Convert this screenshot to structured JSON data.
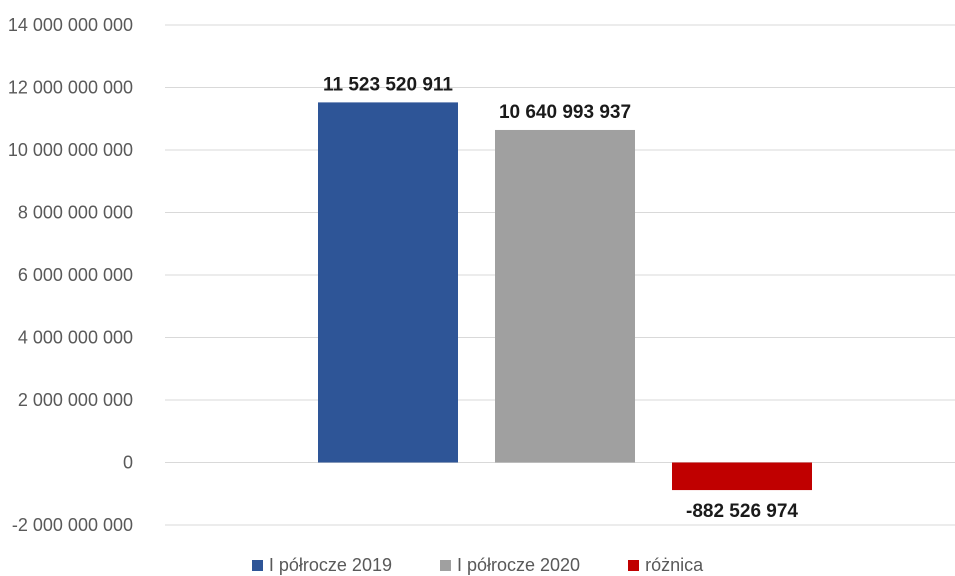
{
  "chart_data": {
    "type": "bar",
    "categories": [
      "I półrocze 2019",
      "I półrocze 2020",
      "różnica"
    ],
    "values": [
      11523520911,
      10640993937,
      -882526974
    ],
    "data_labels": [
      "11 523 520 911",
      "10 640 993 937",
      "-882 526 974"
    ],
    "colors": [
      "#2e5597",
      "#a0a0a0",
      "#c00000"
    ],
    "ylim": [
      -2000000000,
      14000000000
    ],
    "y_ticks": [
      -2000000000,
      0,
      2000000000,
      4000000000,
      6000000000,
      8000000000,
      10000000000,
      12000000000,
      14000000000
    ],
    "y_tick_labels": [
      "-2 000 000 000",
      "0",
      "2 000 000 000",
      "4 000 000 000",
      "6 000 000 000",
      "8 000 000 000",
      "10 000 000 000",
      "12 000 000 000",
      "14 000 000 000"
    ],
    "grid": true,
    "legend_position": "bottom",
    "legend": [
      "I półrocze 2019",
      "I półrocze 2020",
      "różnica"
    ],
    "title": "",
    "xlabel": "",
    "ylabel": ""
  }
}
